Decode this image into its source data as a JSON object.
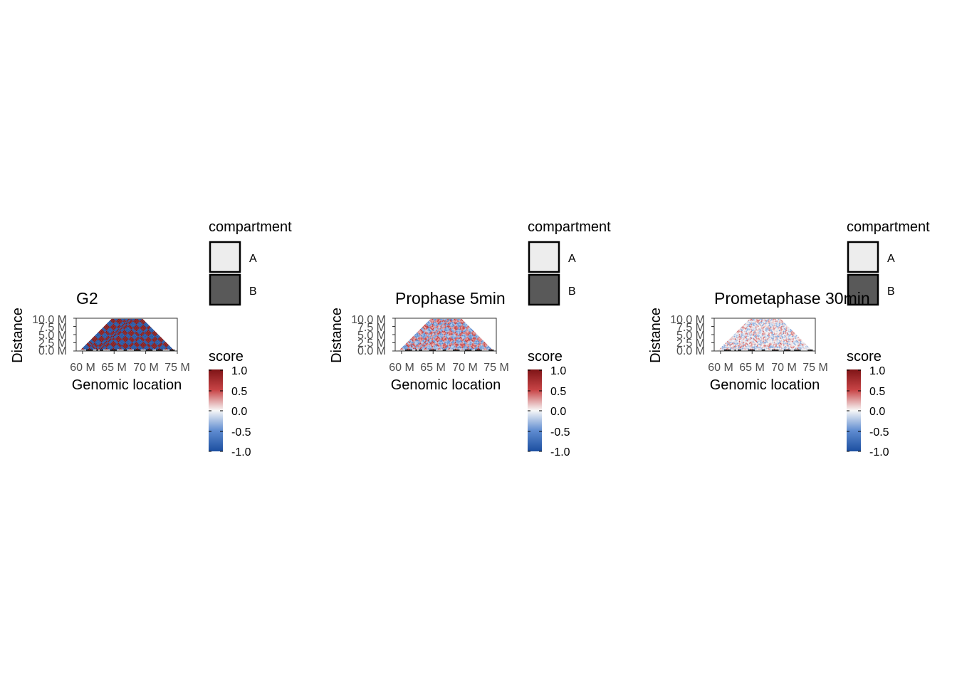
{
  "chart_data": [
    {
      "type": "heatmap",
      "title": "G2",
      "xlabel": "Genomic location",
      "ylabel": "Distance",
      "x_ticks": [
        "60 M",
        "65 M",
        "70 M",
        "75 M"
      ],
      "x_tick_values": [
        60,
        65,
        70,
        75
      ],
      "xlim": [
        59,
        75
      ],
      "y_ticks": [
        "0.0 M",
        "2.5 M",
        "5.0 M",
        "7.5 M",
        "10.0 M"
      ],
      "y_tick_values": [
        0,
        2.5,
        5,
        7.5,
        10
      ],
      "ylim": [
        0,
        10
      ],
      "pattern_intensity": 1.0,
      "compartment_legend": {
        "title": "compartment",
        "items": [
          {
            "label": "A",
            "color": "#EDEDED"
          },
          {
            "label": "B",
            "color": "#595959"
          }
        ]
      },
      "score_legend": {
        "title": "score",
        "ticks": [
          "1.0",
          "0.5",
          "0.0",
          "-0.5",
          "-1.0"
        ],
        "tick_values": [
          1,
          0.5,
          0,
          -0.5,
          -1
        ],
        "colors": [
          "#7F1416",
          "#C84446",
          "#F7F7F7",
          "#5E8BD0",
          "#1C4FA0"
        ]
      }
    },
    {
      "type": "heatmap",
      "title": "Prophase 5min",
      "xlabel": "Genomic location",
      "ylabel": "Distance",
      "x_ticks": [
        "60 M",
        "65 M",
        "70 M",
        "75 M"
      ],
      "x_tick_values": [
        60,
        65,
        70,
        75
      ],
      "xlim": [
        59,
        75
      ],
      "y_ticks": [
        "0.0 M",
        "2.5 M",
        "5.0 M",
        "7.5 M",
        "10.0 M"
      ],
      "y_tick_values": [
        0,
        2.5,
        5,
        7.5,
        10
      ],
      "ylim": [
        0,
        10
      ],
      "pattern_intensity": 0.4,
      "compartment_legend": {
        "title": "compartment",
        "items": [
          {
            "label": "A",
            "color": "#EDEDED"
          },
          {
            "label": "B",
            "color": "#595959"
          }
        ]
      },
      "score_legend": {
        "title": "score",
        "ticks": [
          "1.0",
          "0.5",
          "0.0",
          "-0.5",
          "-1.0"
        ],
        "tick_values": [
          1,
          0.5,
          0,
          -0.5,
          -1
        ],
        "colors": [
          "#7F1416",
          "#C84446",
          "#F7F7F7",
          "#5E8BD0",
          "#1C4FA0"
        ]
      }
    },
    {
      "type": "heatmap",
      "title": "Prometaphase 30min",
      "xlabel": "Genomic location",
      "ylabel": "Distance",
      "x_ticks": [
        "60 M",
        "65 M",
        "70 M",
        "75 M"
      ],
      "x_tick_values": [
        60,
        65,
        70,
        75
      ],
      "xlim": [
        59,
        75
      ],
      "y_ticks": [
        "0.0 M",
        "2.5 M",
        "5.0 M",
        "7.5 M",
        "10.0 M"
      ],
      "y_tick_values": [
        0,
        2.5,
        5,
        7.5,
        10
      ],
      "ylim": [
        0,
        10
      ],
      "pattern_intensity": 0.15,
      "compartment_legend": {
        "title": "compartment",
        "items": [
          {
            "label": "A",
            "color": "#EDEDED"
          },
          {
            "label": "B",
            "color": "#595959"
          }
        ]
      },
      "score_legend": {
        "title": "score",
        "ticks": [
          "1.0",
          "0.5",
          "0.0",
          "-0.5",
          "-1.0"
        ],
        "tick_values": [
          1,
          0.5,
          0,
          -0.5,
          -1
        ],
        "colors": [
          "#7F1416",
          "#C84446",
          "#F7F7F7",
          "#5E8BD0",
          "#1C4FA0"
        ]
      }
    }
  ]
}
